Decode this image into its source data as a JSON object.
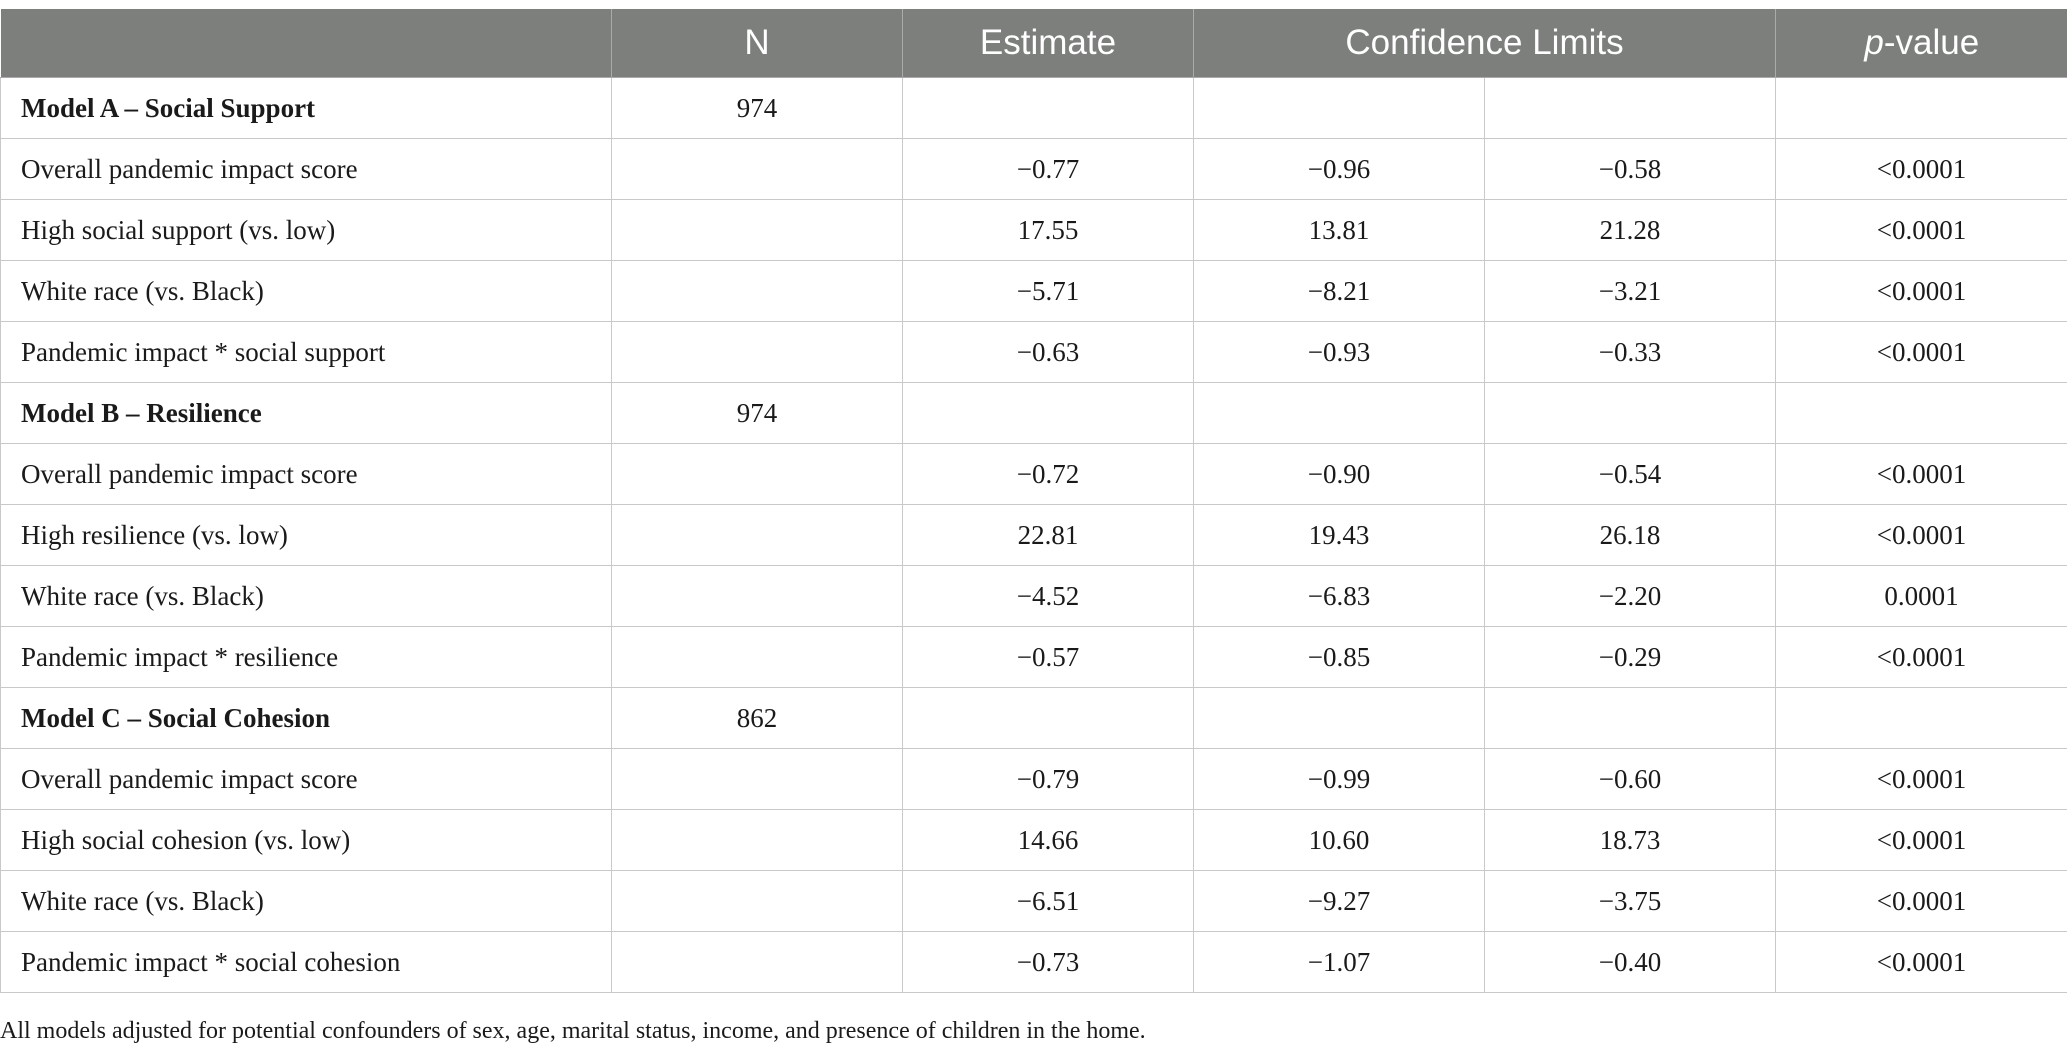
{
  "header": {
    "col_label": "",
    "n": "N",
    "estimate": "Estimate",
    "confidence_limits": "Confidence Limits",
    "pvalue_italic": "p",
    "pvalue_rest": "-value"
  },
  "groups": [
    {
      "title": "Model A – Social Support",
      "n": "974",
      "rows": [
        {
          "label": "Overall pandemic impact score",
          "estimate": "−0.77",
          "lower": "−0.96",
          "upper": "−0.58",
          "p": "<0.0001"
        },
        {
          "label": "High social support (vs. low)",
          "estimate": "17.55",
          "lower": "13.81",
          "upper": "21.28",
          "p": "<0.0001"
        },
        {
          "label": "White race (vs. Black)",
          "estimate": "−5.71",
          "lower": "−8.21",
          "upper": "−3.21",
          "p": "<0.0001"
        },
        {
          "label": "Pandemic impact * social support",
          "estimate": "−0.63",
          "lower": "−0.93",
          "upper": "−0.33",
          "p": "<0.0001"
        }
      ]
    },
    {
      "title": "Model B – Resilience",
      "n": "974",
      "rows": [
        {
          "label": "Overall pandemic impact score",
          "estimate": "−0.72",
          "lower": "−0.90",
          "upper": "−0.54",
          "p": "<0.0001"
        },
        {
          "label": "High resilience (vs. low)",
          "estimate": "22.81",
          "lower": "19.43",
          "upper": "26.18",
          "p": "<0.0001"
        },
        {
          "label": "White race (vs. Black)",
          "estimate": "−4.52",
          "lower": "−6.83",
          "upper": "−2.20",
          "p": "0.0001"
        },
        {
          "label": "Pandemic impact * resilience",
          "estimate": "−0.57",
          "lower": "−0.85",
          "upper": "−0.29",
          "p": "<0.0001"
        }
      ]
    },
    {
      "title": "Model C – Social Cohesion",
      "n": "862",
      "rows": [
        {
          "label": "Overall pandemic impact score",
          "estimate": "−0.79",
          "lower": "−0.99",
          "upper": "−0.60",
          "p": "<0.0001"
        },
        {
          "label": "High social cohesion (vs. low)",
          "estimate": "14.66",
          "lower": "10.60",
          "upper": "18.73",
          "p": "<0.0001"
        },
        {
          "label": "White race (vs. Black)",
          "estimate": "−6.51",
          "lower": "−9.27",
          "upper": "−3.75",
          "p": "<0.0001"
        },
        {
          "label": "Pandemic impact * social cohesion",
          "estimate": "−0.73",
          "lower": "−1.07",
          "upper": "−0.40",
          "p": "<0.0001"
        }
      ]
    }
  ],
  "footnote": "All models adjusted for potential confounders of sex, age, marital status, income, and presence of children in the home."
}
